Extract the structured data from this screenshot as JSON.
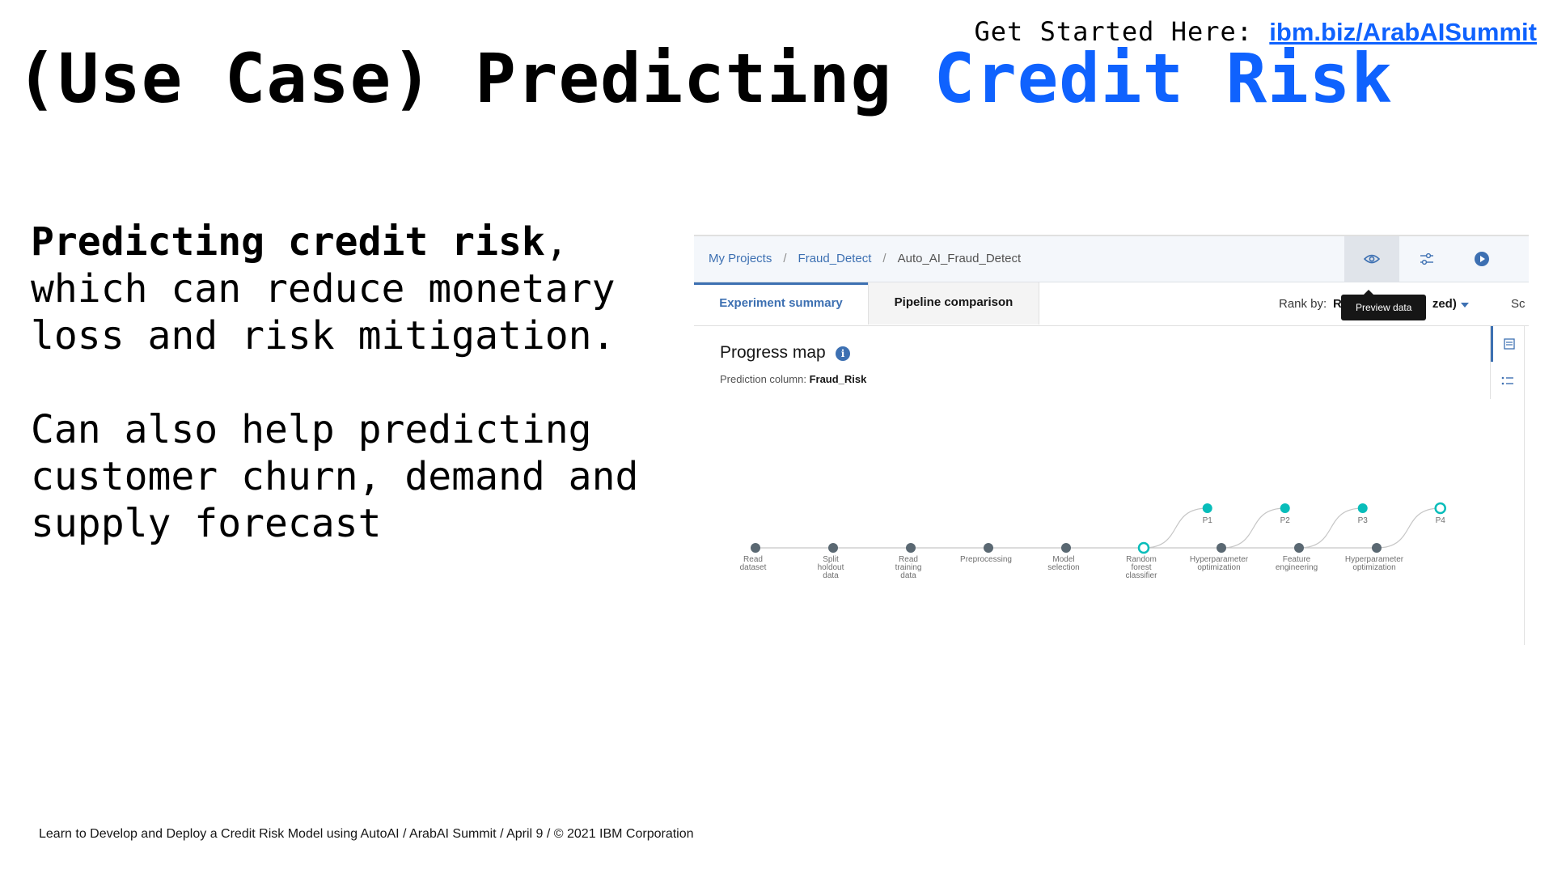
{
  "header": {
    "get_started_label": "Get Started Here:",
    "get_started_link": "ibm.biz/ArabAISummit",
    "title_prefix": "(Use Case) Predicting ",
    "title_accent": "Credit Risk"
  },
  "body": {
    "p1_bold": "Predicting credit risk",
    "p1_rest": ", which can reduce monetary loss and risk mitigation.",
    "p2": "Can also help predicting customer churn, demand and supply forecast"
  },
  "footer": "Learn to Develop and Deploy a Credit Risk Model using AutoAI / ArabAI Summit / April 9 / © 2021 IBM Corporation",
  "screenshot": {
    "breadcrumbs": [
      "My Projects",
      "Fraud_Detect",
      "Auto_AI_Fraud_Detect"
    ],
    "tools": [
      "eye-icon",
      "sliders-icon",
      "play-icon"
    ],
    "tabs": [
      "Experiment summary",
      "Pipeline comparison"
    ],
    "rank_label": "Rank by:",
    "rank_value_left": "R",
    "rank_value_right": "zed)",
    "scroll_label": "Sc",
    "tooltip": "Preview data",
    "progress_title": "Progress map",
    "info_icon_glyph": "i",
    "prediction_label": "Prediction column: ",
    "prediction_value": "Fraud_Risk",
    "colors": {
      "accent": "#3d70b2",
      "teal": "#08bdba",
      "node": "#5a6872"
    },
    "nodes": [
      {
        "lines": [
          "Read",
          "dataset"
        ]
      },
      {
        "lines": [
          "Split",
          "holdout",
          "data"
        ]
      },
      {
        "lines": [
          "Read",
          "training",
          "data"
        ]
      },
      {
        "lines": [
          "Preprocessing"
        ]
      },
      {
        "lines": [
          "Model",
          "selection"
        ]
      },
      {
        "lines": [
          "Random",
          "forest",
          "classifier"
        ]
      },
      {
        "lines": [
          "Hyperparameter",
          "optimization"
        ]
      },
      {
        "lines": [
          "Feature",
          "engineering"
        ]
      },
      {
        "lines": [
          "Hyperparameter",
          "optimization"
        ]
      }
    ],
    "pipelines": [
      "P1",
      "P2",
      "P3",
      "P4"
    ]
  }
}
